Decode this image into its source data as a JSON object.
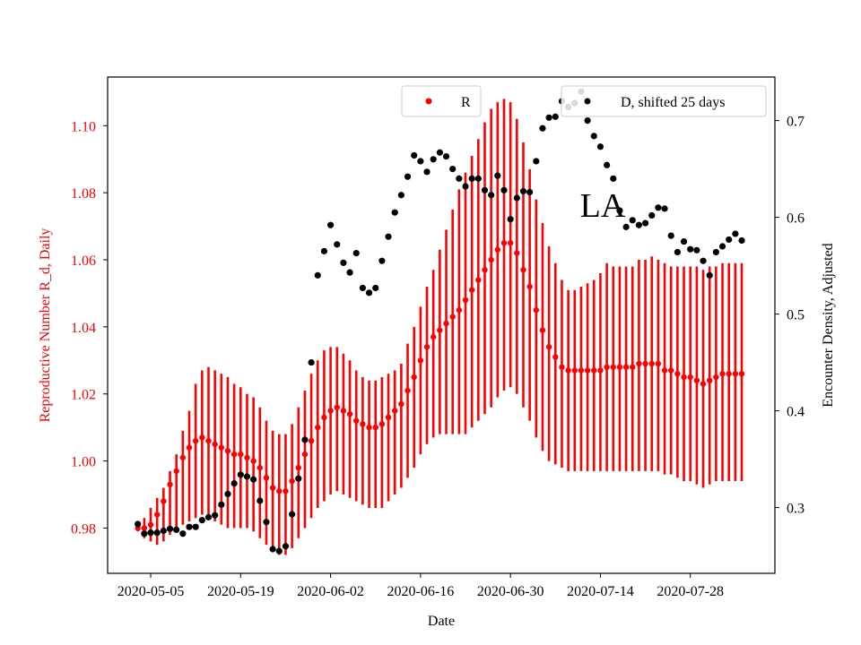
{
  "chart_data": {
    "type": "scatter",
    "title": "",
    "annotation": "LA",
    "xlabel": "Date",
    "ylabel_left": "Reproductive Number R_d, Daily",
    "ylabel_right": "Encounter Density, Adjusted",
    "left_color": "#ff0000",
    "right_color": "#000000",
    "x_start": "2020-05-03",
    "x_ticks": [
      "2020-05-05",
      "2020-05-19",
      "2020-06-02",
      "2020-06-16",
      "2020-06-30",
      "2020-07-14",
      "2020-07-28"
    ],
    "ylim_left": [
      0.9665,
      1.1145
    ],
    "yticks_left": [
      "0.98",
      "1.00",
      "1.02",
      "1.04",
      "1.06",
      "1.08",
      "1.10"
    ],
    "ylim_right": [
      0.232,
      0.745
    ],
    "yticks_right": [
      "0.3",
      "0.4",
      "0.5",
      "0.6",
      "0.7"
    ],
    "legend": [
      {
        "label": "R",
        "color": "#ff0000",
        "position": "top-center"
      },
      {
        "label": "D, shifted 25 days",
        "color": "#000000",
        "position": "top-right"
      }
    ],
    "series": [
      {
        "name": "R",
        "axis": "left",
        "x_days": [
          0,
          1,
          2,
          3,
          4,
          5,
          6,
          7,
          8,
          9,
          10,
          11,
          12,
          13,
          14,
          15,
          16,
          17,
          18,
          19,
          20,
          21,
          22,
          23,
          24,
          25,
          26,
          27,
          28,
          29,
          30,
          31,
          32,
          33,
          34,
          35,
          36,
          37,
          38,
          39,
          40,
          41,
          42,
          43,
          44,
          45,
          46,
          47,
          48,
          49,
          50,
          51,
          52,
          53,
          54,
          55,
          56,
          57,
          58,
          59,
          60,
          61,
          62,
          63,
          64,
          65,
          66,
          67,
          68,
          69,
          70,
          71,
          72,
          73,
          74,
          75,
          76,
          77,
          78,
          79,
          80,
          81,
          82,
          83,
          84,
          85,
          86,
          87,
          88,
          89,
          90,
          91,
          92,
          93,
          94
        ],
        "values": [
          0.98,
          0.98,
          0.981,
          0.984,
          0.988,
          0.993,
          0.997,
          1.001,
          1.004,
          1.006,
          1.007,
          1.006,
          1.005,
          1.004,
          1.003,
          1.002,
          1.002,
          1.001,
          1.0,
          0.998,
          0.995,
          0.992,
          0.991,
          0.991,
          0.994,
          0.998,
          1.002,
          1.006,
          1.01,
          1.013,
          1.015,
          1.016,
          1.015,
          1.014,
          1.012,
          1.011,
          1.01,
          1.01,
          1.011,
          1.013,
          1.015,
          1.017,
          1.021,
          1.025,
          1.03,
          1.034,
          1.037,
          1.039,
          1.041,
          1.043,
          1.045,
          1.048,
          1.051,
          1.054,
          1.057,
          1.06,
          1.063,
          1.065,
          1.065,
          1.062,
          1.057,
          1.052,
          1.045,
          1.039,
          1.034,
          1.031,
          1.028,
          1.027,
          1.027,
          1.027,
          1.027,
          1.027,
          1.027,
          1.028,
          1.028,
          1.028,
          1.028,
          1.028,
          1.029,
          1.029,
          1.029,
          1.029,
          1.027,
          1.027,
          1.026,
          1.025,
          1.025,
          1.024,
          1.023,
          1.024,
          1.025,
          1.026,
          1.026,
          1.026,
          1.026
        ],
        "err_lo": [
          0.979,
          0.977,
          0.976,
          0.975,
          0.976,
          0.978,
          0.979,
          0.981,
          0.982,
          0.983,
          0.984,
          0.983,
          0.982,
          0.981,
          0.98,
          0.98,
          0.98,
          0.98,
          0.979,
          0.977,
          0.975,
          0.973,
          0.972,
          0.972,
          0.974,
          0.977,
          0.98,
          0.983,
          0.986,
          0.988,
          0.99,
          0.991,
          0.99,
          0.989,
          0.988,
          0.987,
          0.986,
          0.986,
          0.986,
          0.988,
          0.99,
          0.992,
          0.995,
          0.998,
          1.002,
          1.005,
          1.007,
          1.008,
          1.008,
          1.008,
          1.008,
          1.008,
          1.01,
          1.012,
          1.014,
          1.016,
          1.019,
          1.021,
          1.022,
          1.02,
          1.016,
          1.012,
          1.007,
          1.003,
          1.0,
          0.999,
          0.998,
          0.997,
          0.997,
          0.997,
          0.997,
          0.997,
          0.997,
          0.997,
          0.997,
          0.997,
          0.997,
          0.997,
          0.997,
          0.997,
          0.997,
          0.997,
          0.996,
          0.996,
          0.995,
          0.994,
          0.994,
          0.993,
          0.992,
          0.993,
          0.994,
          0.994,
          0.994,
          0.994,
          0.994
        ],
        "err_hi": [
          0.981,
          0.983,
          0.986,
          0.989,
          0.992,
          0.997,
          1.002,
          1.009,
          1.015,
          1.023,
          1.027,
          1.028,
          1.027,
          1.026,
          1.025,
          1.023,
          1.022,
          1.02,
          1.019,
          1.016,
          1.012,
          1.009,
          1.008,
          1.008,
          1.011,
          1.016,
          1.021,
          1.026,
          1.03,
          1.033,
          1.034,
          1.034,
          1.032,
          1.03,
          1.027,
          1.025,
          1.024,
          1.024,
          1.025,
          1.026,
          1.027,
          1.029,
          1.035,
          1.04,
          1.046,
          1.052,
          1.057,
          1.063,
          1.069,
          1.075,
          1.081,
          1.086,
          1.091,
          1.096,
          1.101,
          1.105,
          1.107,
          1.108,
          1.107,
          1.102,
          1.095,
          1.087,
          1.078,
          1.071,
          1.064,
          1.059,
          1.054,
          1.051,
          1.051,
          1.052,
          1.053,
          1.054,
          1.056,
          1.059,
          1.058,
          1.058,
          1.058,
          1.058,
          1.06,
          1.06,
          1.061,
          1.06,
          1.059,
          1.058,
          1.058,
          1.058,
          1.058,
          1.058,
          1.057,
          1.058,
          1.058,
          1.059,
          1.059,
          1.059,
          1.059
        ]
      },
      {
        "name": "D, shifted 25 days",
        "axis": "right",
        "x_days": [
          0,
          1,
          2,
          3,
          4,
          5,
          6,
          7,
          8,
          9,
          10,
          11,
          12,
          13,
          14,
          15,
          16,
          17,
          18,
          19,
          20,
          21,
          22,
          23,
          24,
          25,
          26,
          27,
          28,
          29,
          30,
          31,
          32,
          33,
          34,
          35,
          36,
          37,
          38,
          39,
          40,
          41,
          42,
          43,
          44,
          45,
          46,
          47,
          48,
          49,
          50,
          51,
          52,
          53,
          54,
          55,
          56,
          57,
          58,
          59,
          60,
          61,
          62,
          63,
          64,
          65,
          66,
          67,
          68,
          69,
          70,
          71,
          72,
          73,
          74,
          75,
          76,
          77,
          78,
          79,
          80,
          81,
          82,
          83,
          84,
          85,
          86,
          87,
          88,
          89,
          90,
          91,
          92,
          93,
          94
        ],
        "values": [
          0.283,
          0.273,
          0.274,
          0.274,
          0.276,
          0.278,
          0.277,
          0.273,
          0.28,
          0.28,
          0.287,
          0.29,
          0.292,
          0.303,
          0.314,
          0.325,
          0.334,
          0.332,
          0.329,
          0.307,
          0.285,
          0.257,
          0.255,
          0.26,
          0.293,
          0.33,
          0.37,
          0.45,
          0.54,
          0.565,
          0.592,
          0.572,
          0.553,
          0.543,
          0.563,
          0.527,
          0.522,
          0.527,
          0.555,
          0.58,
          0.605,
          0.623,
          0.642,
          0.664,
          0.658,
          0.647,
          0.66,
          0.667,
          0.663,
          0.65,
          0.64,
          0.632,
          0.64,
          0.64,
          0.628,
          0.623,
          0.643,
          0.628,
          0.598,
          0.62,
          0.627,
          0.626,
          0.658,
          0.692,
          0.703,
          0.704,
          0.72,
          0.714,
          0.718,
          0.73,
          0.7,
          0.684,
          0.673,
          0.654,
          0.64,
          0.607,
          0.59,
          0.597,
          0.592,
          0.594,
          0.602,
          0.61,
          0.609,
          0.581,
          0.564,
          0.575,
          0.567,
          0.566,
          0.555,
          0.54,
          0.564,
          0.57,
          0.577,
          0.583,
          0.576
        ]
      }
    ]
  }
}
